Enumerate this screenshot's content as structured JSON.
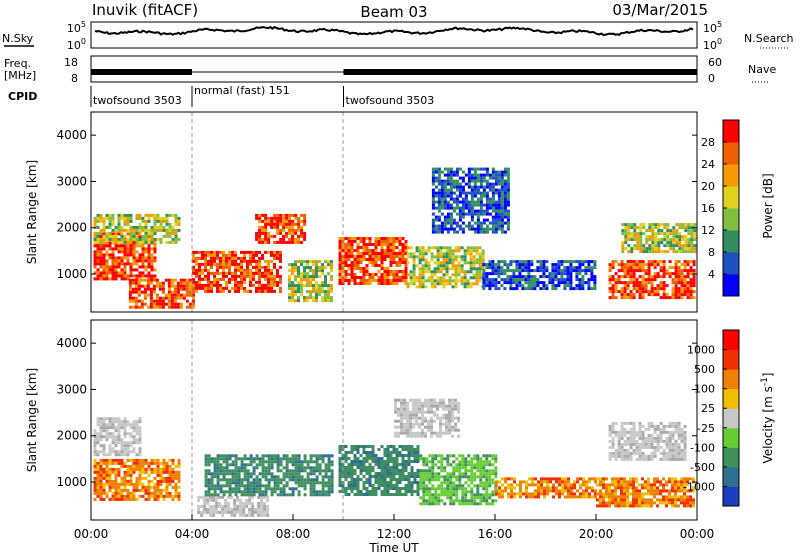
{
  "header": {
    "station": "Inuvik (fitACF)",
    "beam": "Beam 03",
    "date": "03/Mar/2015"
  },
  "panels": {
    "nsky": {
      "left_label": "N.Sky",
      "right_label": "N.Search",
      "left_ticks": [
        "10^5",
        "10^0"
      ],
      "right_ticks": [
        "10^5",
        "10^0"
      ]
    },
    "freq": {
      "left_label_1": "Freq.",
      "left_label_2": "[MHz]",
      "right_label": "Nave",
      "left_ticks": [
        "18",
        "8"
      ],
      "right_ticks": [
        "60",
        "0"
      ]
    },
    "cpid": {
      "label": "CPID",
      "segments": [
        {
          "start_h": 0,
          "end_h": 4,
          "text": "twofsound 3503"
        },
        {
          "start_h": 4,
          "end_h": 10,
          "text": "normal (fast) 151"
        },
        {
          "start_h": 10,
          "end_h": 24,
          "text": "twofsound 3503"
        }
      ]
    }
  },
  "colors": {
    "echo_low": "#1f3fbf",
    "echo_mid": "#3f9f5f",
    "echo_high": "#ff2000",
    "ground": "#bdbdbd",
    "velocity_neg": "#f07800",
    "velocity_pos": "#3f8f5f",
    "velocity_pos_light": "#66cc33"
  },
  "chart_data": [
    {
      "type": "heatmap",
      "name": "power",
      "ylabel": "Slant Range [km]",
      "ylim": [
        180,
        4500
      ],
      "yticks": [
        "1000",
        "2000",
        "3000",
        "4000"
      ],
      "xlim": [
        0,
        24
      ],
      "colorbar": {
        "label": "Power [dB]",
        "ticks": [
          "4",
          "8",
          "12",
          "16",
          "20",
          "24",
          "28"
        ],
        "colors": [
          "#0000ff",
          "#2050c0",
          "#2f8f5f",
          "#7fbf3f",
          "#e0d020",
          "#f59a00",
          "#f06000",
          "#ff0000"
        ]
      },
      "regions": [
        {
          "start_h": 0.1,
          "end_h": 2.5,
          "r_low": 900,
          "r_high": 1900,
          "level": "high"
        },
        {
          "start_h": 0.1,
          "end_h": 3.5,
          "r_low": 1700,
          "r_high": 2300,
          "level": "mid"
        },
        {
          "start_h": 1.5,
          "end_h": 4.0,
          "r_low": 300,
          "r_high": 900,
          "level": "high"
        },
        {
          "start_h": 4.0,
          "end_h": 7.5,
          "r_low": 600,
          "r_high": 1500,
          "level": "high"
        },
        {
          "start_h": 6.5,
          "end_h": 8.5,
          "r_low": 1700,
          "r_high": 2300,
          "level": "high"
        },
        {
          "start_h": 7.8,
          "end_h": 9.5,
          "r_low": 400,
          "r_high": 1300,
          "level": "mid"
        },
        {
          "start_h": 9.8,
          "end_h": 12.5,
          "r_low": 800,
          "r_high": 1800,
          "level": "high"
        },
        {
          "start_h": 12.5,
          "end_h": 15.5,
          "r_low": 700,
          "r_high": 1600,
          "level": "mid"
        },
        {
          "start_h": 13.5,
          "end_h": 16.5,
          "r_low": 1900,
          "r_high": 3300,
          "level": "low"
        },
        {
          "start_h": 15.5,
          "end_h": 20.0,
          "r_low": 700,
          "r_high": 1300,
          "level": "low"
        },
        {
          "start_h": 20.5,
          "end_h": 23.9,
          "r_low": 500,
          "r_high": 1300,
          "level": "high"
        },
        {
          "start_h": 21.0,
          "end_h": 23.9,
          "r_low": 1500,
          "r_high": 2100,
          "level": "mid"
        }
      ]
    },
    {
      "type": "heatmap",
      "name": "velocity",
      "ylabel": "Slant Range [km]",
      "ylim": [
        180,
        4500
      ],
      "yticks": [
        "1000",
        "2000",
        "3000",
        "4000"
      ],
      "xlabel": "Time UT",
      "xticks": [
        "00:00",
        "04:00",
        "08:00",
        "12:00",
        "16:00",
        "20:00",
        "00:00"
      ],
      "xlim": [
        0,
        24
      ],
      "colorbar": {
        "label": "Velocity [m s^-1]",
        "ticks": [
          "1000",
          "500",
          "100",
          "25",
          "-25",
          "-100",
          "-500",
          "-1000"
        ],
        "colors": [
          "#1d3fbf",
          "#2f6f8f",
          "#3f8f5f",
          "#66cc33",
          "#c8c8c8",
          "#f0c000",
          "#f08000",
          "#f03000",
          "#ff0000"
        ]
      },
      "regions": [
        {
          "start_h": 0.1,
          "end_h": 3.5,
          "r_low": 600,
          "r_high": 1500,
          "level": "neg"
        },
        {
          "start_h": 0.1,
          "end_h": 2.0,
          "r_low": 1600,
          "r_high": 2400,
          "level": "ground"
        },
        {
          "start_h": 4.2,
          "end_h": 7.0,
          "r_low": 300,
          "r_high": 700,
          "level": "ground"
        },
        {
          "start_h": 4.5,
          "end_h": 9.5,
          "r_low": 700,
          "r_high": 1600,
          "level": "pos"
        },
        {
          "start_h": 9.8,
          "end_h": 13.0,
          "r_low": 700,
          "r_high": 1800,
          "level": "pos"
        },
        {
          "start_h": 12.0,
          "end_h": 14.5,
          "r_low": 2000,
          "r_high": 2800,
          "level": "ground"
        },
        {
          "start_h": 13.0,
          "end_h": 16.0,
          "r_low": 500,
          "r_high": 1600,
          "level": "pos_light"
        },
        {
          "start_h": 16.0,
          "end_h": 20.0,
          "r_low": 700,
          "r_high": 1100,
          "level": "neg"
        },
        {
          "start_h": 20.0,
          "end_h": 23.9,
          "r_low": 500,
          "r_high": 1100,
          "level": "neg"
        },
        {
          "start_h": 20.5,
          "end_h": 23.5,
          "r_low": 1500,
          "r_high": 2300,
          "level": "ground"
        }
      ]
    }
  ]
}
